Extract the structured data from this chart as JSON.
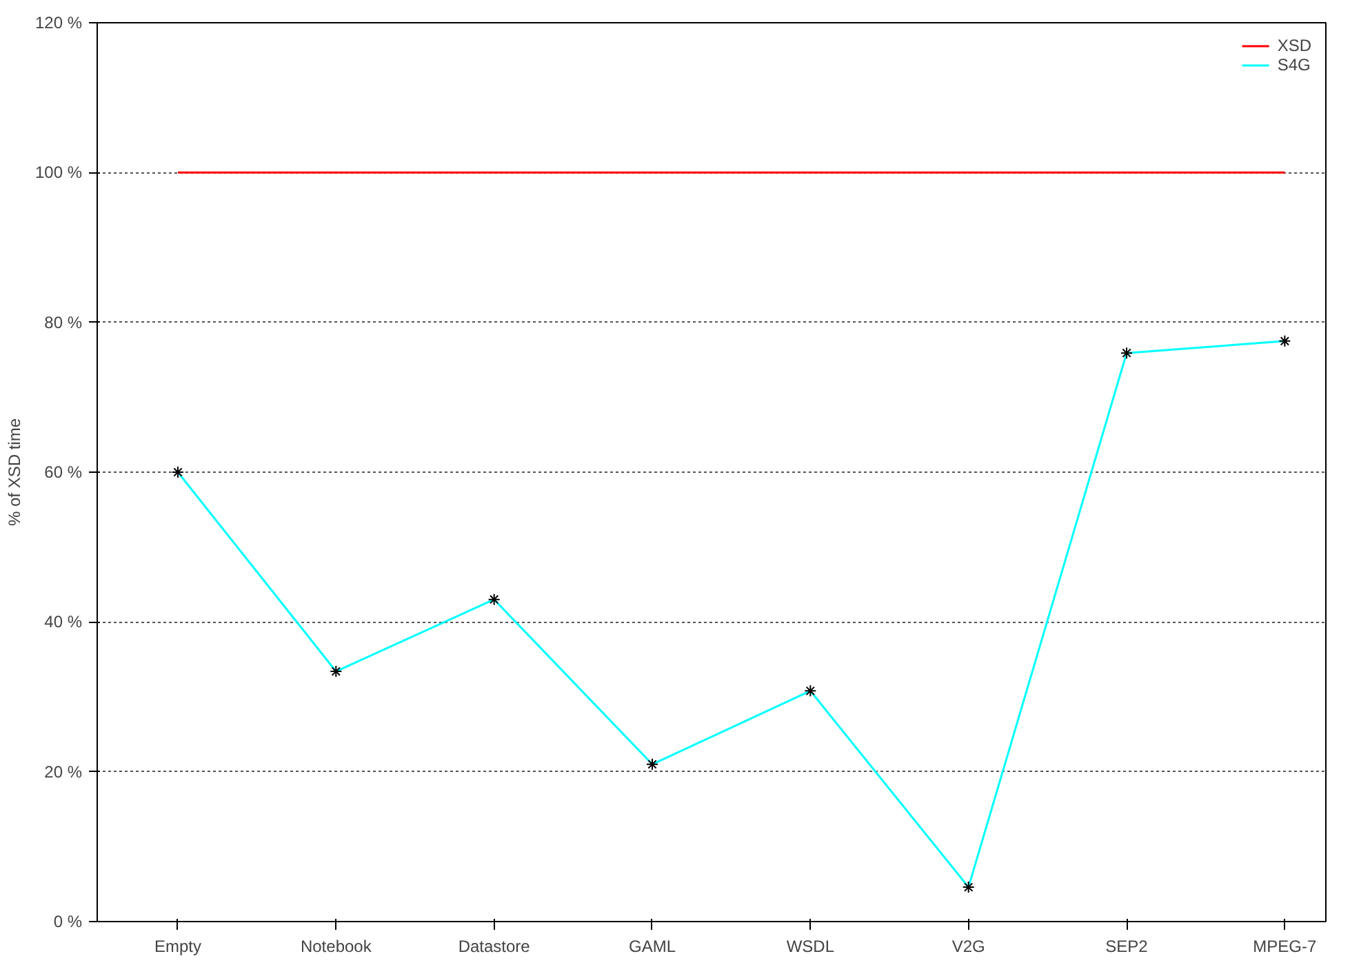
{
  "chart_data": {
    "type": "line",
    "ylabel": "% of XSD time",
    "categories": [
      "Empty",
      "Notebook",
      "Datastore",
      "GAML",
      "WSDL",
      "V2G",
      "SEP2",
      "MPEG-7"
    ],
    "series": [
      {
        "name": "XSD",
        "color": "#ff0000",
        "marker": "none",
        "values": [
          100,
          100,
          100,
          100,
          100,
          100,
          100,
          100
        ]
      },
      {
        "name": "S4G",
        "color": "#00ffff",
        "marker": "cross",
        "values": [
          60.0,
          33.4,
          43.0,
          21.0,
          30.8,
          4.6,
          75.9,
          77.5
        ]
      }
    ],
    "ylim": [
      0,
      120
    ],
    "yticks": [
      {
        "value": 0,
        "label": "0 %"
      },
      {
        "value": 20,
        "label": "20 %"
      },
      {
        "value": 40,
        "label": "40 %"
      },
      {
        "value": 60,
        "label": "60 %"
      },
      {
        "value": 80,
        "label": "80 %"
      },
      {
        "value": 100,
        "label": "100 %"
      },
      {
        "value": 120,
        "label": "120 %"
      }
    ],
    "grid": "y",
    "legend": "top right",
    "line_style": "solid"
  }
}
